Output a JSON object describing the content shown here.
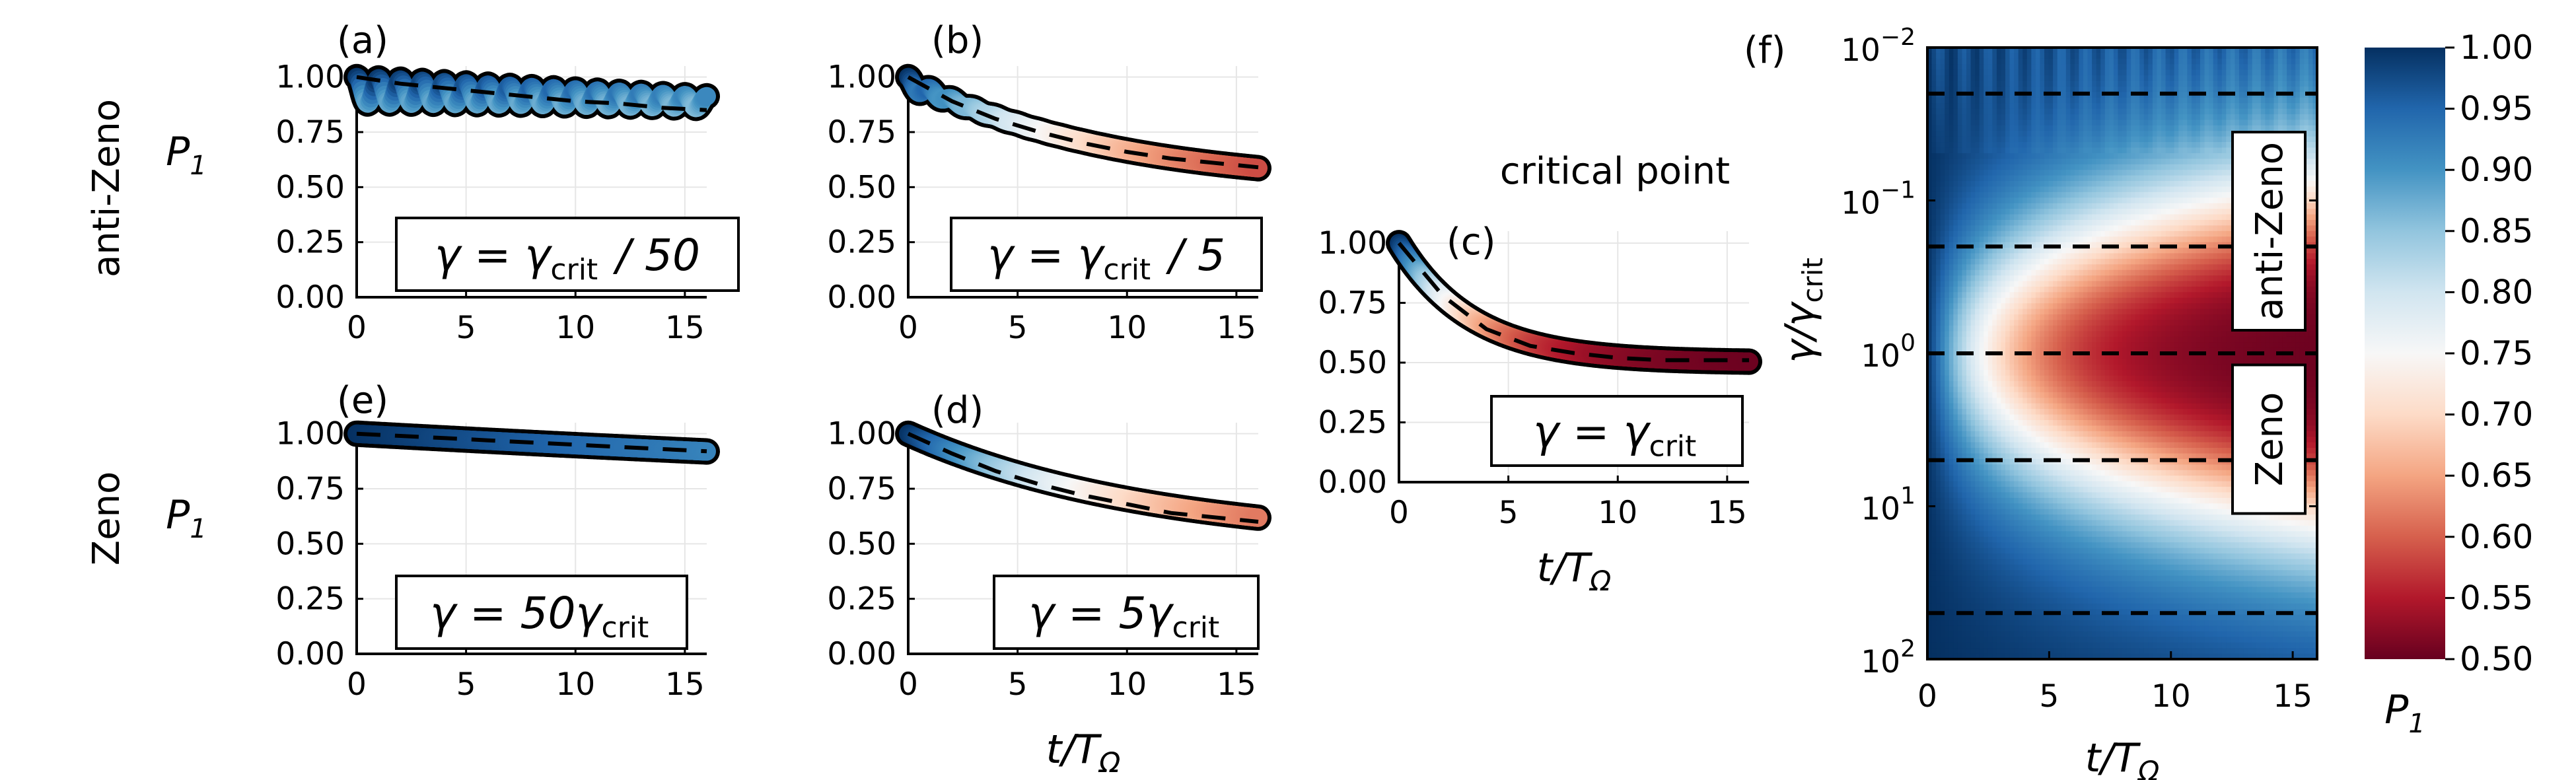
{
  "colors": {
    "cmap_low": "#67001f",
    "cmap_mid": "#f7f7f7",
    "cmap_high": "#053061",
    "curve_outline": "#000000",
    "dashed": "#000000"
  },
  "row_labels": {
    "top": "anti-Zeno",
    "bottom": "Zeno",
    "ylabel": "P_1"
  },
  "critical_label": "critical point",
  "chart_data": [
    {
      "id": "a",
      "type": "line",
      "panel_label": "(a)",
      "regime": "anti-Zeno",
      "gamma_label": "γ = γ_crit / 50",
      "xlabel": "",
      "ylabel": "P_1",
      "xlim": [
        0,
        16
      ],
      "ylim": [
        0,
        1.05
      ],
      "xticks": [
        0,
        5,
        10,
        15
      ],
      "yticks": [
        "0.00",
        "0.25",
        "0.50",
        "0.75",
        "1.00"
      ],
      "grid": true,
      "model": {
        "p_inf": 0.5,
        "rate": 0.012,
        "osc_amp": 0.06,
        "osc_damp": 0.05,
        "osc_freq": 6.28
      },
      "series": [
        {
          "style": "solid",
          "x": [
            0,
            2,
            4,
            6,
            8,
            10,
            12,
            14,
            16
          ],
          "y": [
            1.0,
            0.97,
            0.95,
            0.93,
            0.91,
            0.89,
            0.88,
            0.86,
            0.85
          ]
        },
        {
          "style": "dashed",
          "x": [
            0,
            2,
            4,
            6,
            8,
            10,
            12,
            14,
            16
          ],
          "y": [
            1.0,
            0.97,
            0.95,
            0.93,
            0.91,
            0.89,
            0.88,
            0.86,
            0.85
          ]
        }
      ]
    },
    {
      "id": "b",
      "type": "line",
      "panel_label": "(b)",
      "regime": "anti-Zeno",
      "gamma_label": "γ = γ_crit / 5",
      "xlabel": "t / T_Ω",
      "ylabel": "",
      "xlim": [
        0,
        16
      ],
      "ylim": [
        0,
        1.05
      ],
      "xticks": [
        0,
        5,
        10,
        15
      ],
      "yticks": [
        "0.00",
        "0.25",
        "0.50",
        "0.75",
        "1.00"
      ],
      "grid": true,
      "model": {
        "p_inf": 0.5,
        "rate": 0.11,
        "osc_amp": 0.03,
        "osc_damp": 0.6,
        "osc_freq": 6.28
      },
      "series": [
        {
          "style": "solid",
          "x": [
            0,
            2,
            4,
            6,
            8,
            10,
            12,
            14,
            16
          ],
          "y": [
            1.0,
            0.9,
            0.82,
            0.76,
            0.7,
            0.66,
            0.63,
            0.61,
            0.58
          ]
        },
        {
          "style": "dashed",
          "x": [
            0,
            2,
            4,
            6,
            8,
            10,
            12,
            14,
            16
          ],
          "y": [
            1.0,
            0.89,
            0.81,
            0.75,
            0.7,
            0.66,
            0.63,
            0.61,
            0.59
          ]
        }
      ]
    },
    {
      "id": "c",
      "type": "line",
      "panel_label": "(c)",
      "regime": "critical point",
      "gamma_label": "γ = γ_crit",
      "xlabel": "t / T_Ω",
      "ylabel": "",
      "xlim": [
        0,
        16
      ],
      "ylim": [
        0,
        1.05
      ],
      "xticks": [
        0,
        5,
        10,
        15
      ],
      "yticks": [
        "0.00",
        "0.25",
        "0.50",
        "0.75",
        "1.00"
      ],
      "grid": true,
      "model": {
        "p_inf": 0.5,
        "rate": 0.3,
        "osc_amp": 0.0,
        "osc_damp": 1.0,
        "osc_freq": 0
      },
      "series": [
        {
          "style": "solid",
          "x": [
            0,
            2,
            4,
            6,
            8,
            10,
            12,
            14,
            16
          ],
          "y": [
            1.0,
            0.78,
            0.64,
            0.57,
            0.54,
            0.52,
            0.51,
            0.51,
            0.51
          ]
        },
        {
          "style": "dashed",
          "x": [
            0,
            2,
            4,
            6,
            8,
            10,
            12,
            14,
            16
          ],
          "y": [
            1.0,
            0.78,
            0.64,
            0.57,
            0.54,
            0.52,
            0.51,
            0.51,
            0.51
          ]
        }
      ]
    },
    {
      "id": "d",
      "type": "line",
      "panel_label": "(d)",
      "regime": "Zeno",
      "gamma_label": "γ = 5γ_crit",
      "xlabel": "t / T_Ω",
      "ylabel": "",
      "xlim": [
        0,
        16
      ],
      "ylim": [
        0,
        1.05
      ],
      "xticks": [
        0,
        5,
        10,
        15
      ],
      "yticks": [
        "0.00",
        "0.25",
        "0.50",
        "0.75",
        "1.00"
      ],
      "grid": true,
      "model": {
        "p_inf": 0.5,
        "rate": 0.09,
        "osc_amp": 0.0,
        "osc_damp": 1.0,
        "osc_freq": 0
      },
      "series": [
        {
          "style": "solid",
          "x": [
            0,
            2,
            4,
            6,
            8,
            10,
            12,
            14,
            16
          ],
          "y": [
            1.0,
            0.92,
            0.84,
            0.77,
            0.72,
            0.67,
            0.64,
            0.61,
            0.58
          ]
        },
        {
          "style": "dashed",
          "x": [
            0,
            2,
            4,
            6,
            8,
            10,
            12,
            14,
            16
          ],
          "y": [
            1.0,
            0.91,
            0.83,
            0.77,
            0.72,
            0.68,
            0.64,
            0.62,
            0.6
          ]
        }
      ]
    },
    {
      "id": "e",
      "type": "line",
      "panel_label": "(e)",
      "regime": "Zeno",
      "gamma_label": "γ = 50γ_crit",
      "xlabel": "",
      "ylabel": "P_1",
      "xlim": [
        0,
        16
      ],
      "ylim": [
        0,
        1.05
      ],
      "xticks": [
        0,
        5,
        10,
        15
      ],
      "yticks": [
        "0.00",
        "0.25",
        "0.50",
        "0.75",
        "1.00"
      ],
      "grid": true,
      "model": {
        "p_inf": 0.5,
        "rate": 0.011,
        "osc_amp": 0.0,
        "osc_damp": 1.0,
        "osc_freq": 0
      },
      "series": [
        {
          "style": "solid",
          "x": [
            0,
            2,
            4,
            6,
            8,
            10,
            12,
            14,
            16
          ],
          "y": [
            1.0,
            0.99,
            0.98,
            0.97,
            0.96,
            0.95,
            0.93,
            0.92,
            0.91
          ]
        },
        {
          "style": "dashed",
          "x": [
            0,
            2,
            4,
            6,
            8,
            10,
            12,
            14,
            16
          ],
          "y": [
            1.0,
            0.99,
            0.98,
            0.97,
            0.96,
            0.95,
            0.94,
            0.93,
            0.92
          ]
        }
      ]
    },
    {
      "id": "f",
      "type": "heatmap",
      "panel_label": "(f)",
      "xlabel": "t / T_Ω",
      "ylabel": "γ / γ_crit",
      "xlim": [
        0,
        16
      ],
      "xticks": [
        0,
        5,
        10,
        15
      ],
      "ylim": [
        0.01,
        100
      ],
      "yscale": "log",
      "y_inverted": true,
      "yticks": [
        {
          "value": 0.01,
          "base": "10",
          "exp": "−2"
        },
        {
          "value": 0.1,
          "base": "10",
          "exp": "−1"
        },
        {
          "value": 1,
          "base": "10",
          "exp": "0"
        },
        {
          "value": 10,
          "base": "10",
          "exp": "1"
        },
        {
          "value": 100,
          "base": "10",
          "exp": "2"
        }
      ],
      "dashed_lines_at_gamma": [
        0.02,
        0.2,
        1,
        5,
        50
      ],
      "region_labels": [
        "anti-Zeno",
        "Zeno"
      ],
      "colorbar": {
        "label": "P_1",
        "min": 0.5,
        "max": 1.0,
        "ticks": [
          "1.00",
          "0.95",
          "0.90",
          "0.85",
          "0.80",
          "0.75",
          "0.70",
          "0.65",
          "0.60",
          "0.55",
          "0.50"
        ]
      }
    }
  ]
}
